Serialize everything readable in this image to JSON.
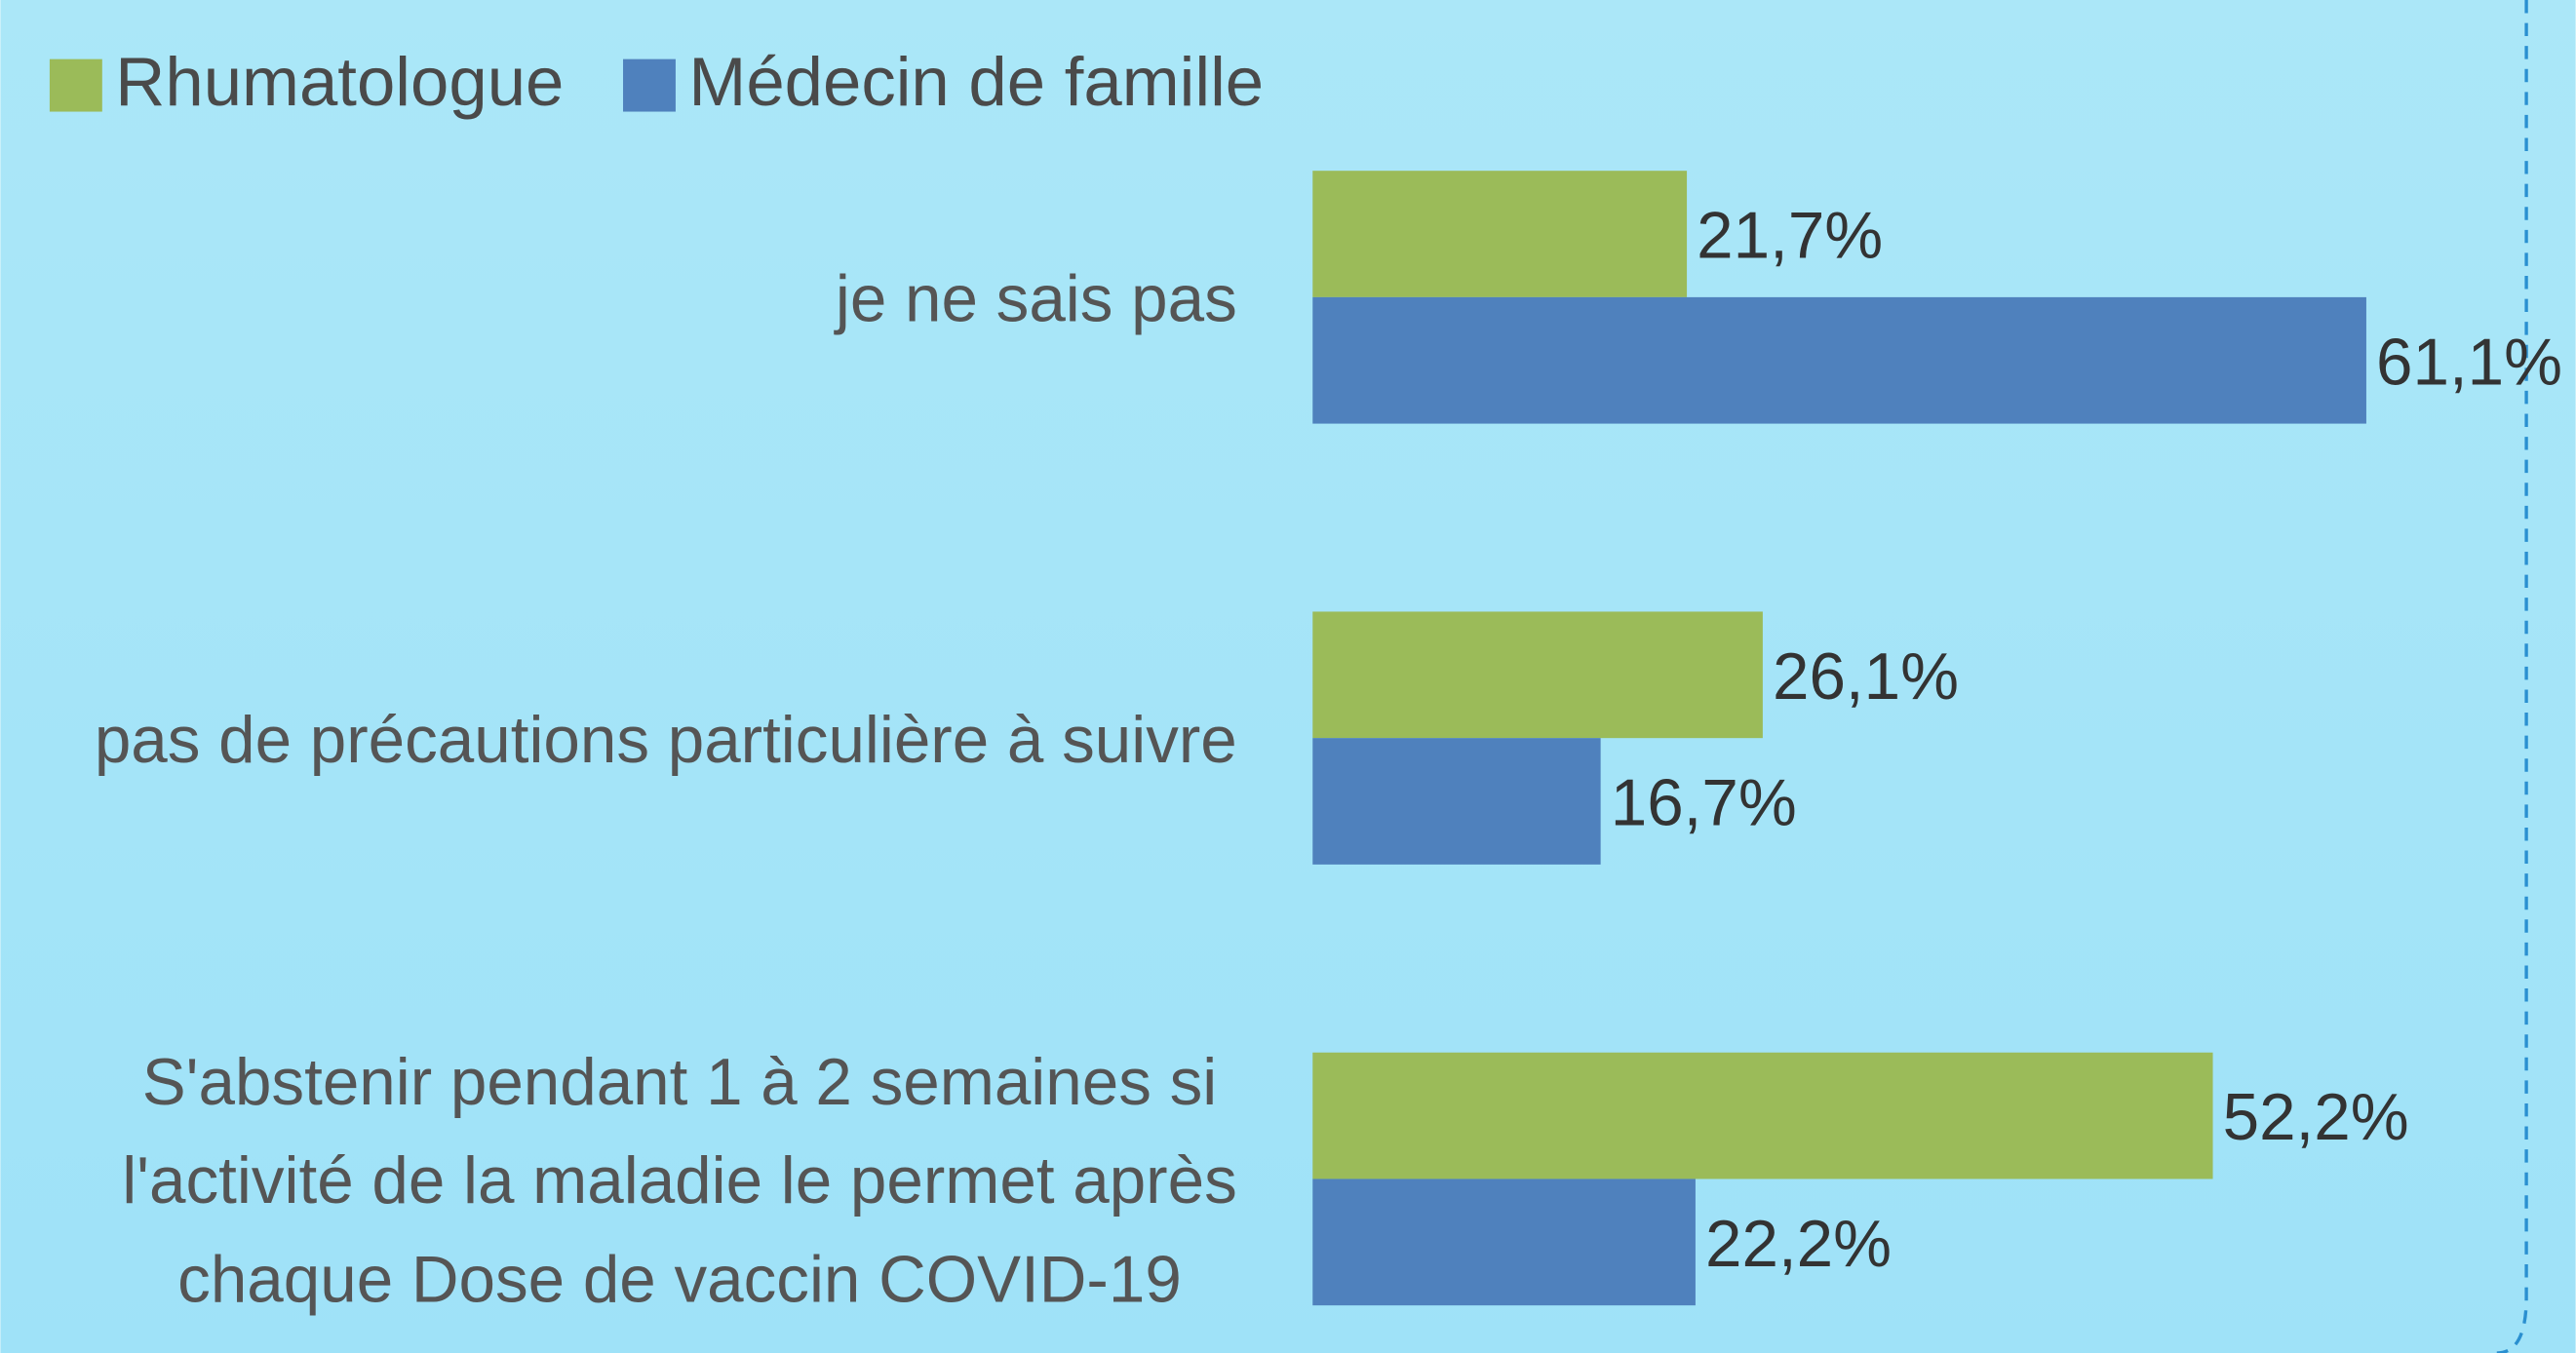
{
  "chart_data": {
    "type": "barh",
    "categories": [
      "je ne sais pas",
      "pas de précautions particulière à suivre",
      "S'abstenir pendant 1 à 2 semaines si l'activité de la maladie le permet après chaque Dose de vaccin COVID-19"
    ],
    "series": [
      {
        "name": "Rhumatologue",
        "color": "#9bbb59",
        "values": [
          21.7,
          26.1,
          52.2
        ],
        "value_labels": [
          "21,7%",
          "26,1%",
          "52,2%"
        ]
      },
      {
        "name": "Médecin de famille",
        "color": "#4f81bd",
        "values": [
          61.1,
          16.7,
          22.2
        ],
        "value_labels": [
          "61,1%",
          "16,7%",
          "22,2%"
        ]
      }
    ],
    "xlim": [
      0,
      70
    ],
    "legend": "top-left"
  }
}
